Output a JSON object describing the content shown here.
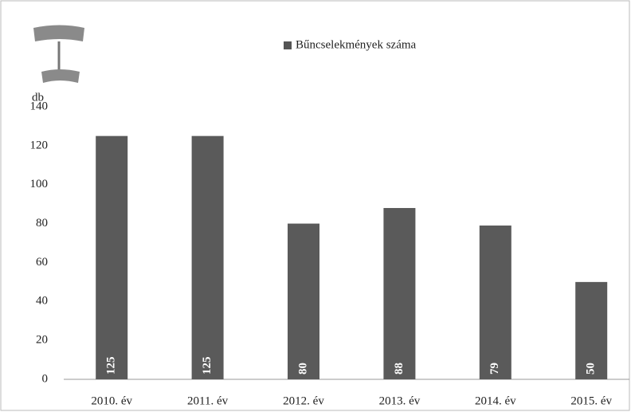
{
  "chart_data": {
    "type": "bar",
    "legend": "Bűncselekmények száma",
    "y_label": "db",
    "categories": [
      "2010. év",
      "2011. év",
      "2012. év",
      "2013. év",
      "2014. év",
      "2015. év"
    ],
    "values": [
      125,
      125,
      80,
      88,
      79,
      50
    ],
    "color": "#5a5a5a",
    "ylim": [
      0,
      140
    ],
    "yticks": [
      0,
      20,
      40,
      60,
      80,
      100,
      120,
      140
    ],
    "grid": false
  }
}
